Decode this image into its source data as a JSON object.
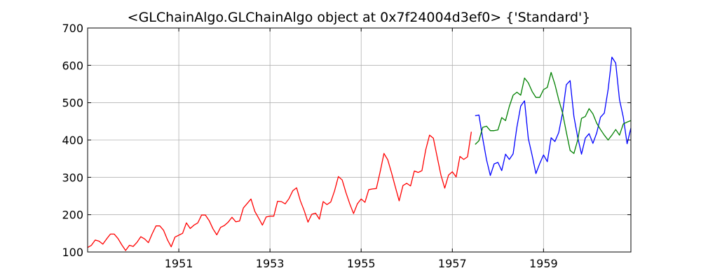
{
  "chart_data": {
    "type": "line",
    "title": "<GLChainAlgo.GLChainAlgo object at 0x7f24004d3ef0> {'Standard'}",
    "xlabel": "",
    "ylabel": "",
    "xlim": [
      "1949-01",
      "1960-12"
    ],
    "ylim": [
      100,
      700
    ],
    "grid": true,
    "x_ticks": [
      "1951",
      "1953",
      "1955",
      "1957",
      "1959"
    ],
    "y_ticks": [
      "100",
      "200",
      "300",
      "400",
      "500",
      "600",
      "700"
    ],
    "series": [
      {
        "color": "#ff0000",
        "x_start": "1949-01",
        "values": [
          112,
          118,
          132,
          129,
          121,
          135,
          148,
          148,
          136,
          119,
          104,
          118,
          115,
          126,
          141,
          135,
          125,
          149,
          170,
          170,
          158,
          133,
          114,
          140,
          145,
          150,
          178,
          163,
          172,
          178,
          199,
          199,
          184,
          162,
          146,
          166,
          171,
          180,
          193,
          181,
          183,
          218,
          230,
          242,
          209,
          191,
          172,
          194,
          196,
          196,
          236,
          235,
          229,
          243,
          264,
          272,
          237,
          211,
          180,
          201,
          204,
          188,
          235,
          227,
          234,
          264,
          302,
          293,
          259,
          229,
          203,
          229,
          242,
          233,
          267,
          269,
          270,
          315,
          364,
          347,
          312,
          274,
          237,
          278,
          284,
          277,
          317,
          313,
          318,
          374,
          413,
          405,
          355,
          306,
          271,
          306,
          315,
          301,
          356,
          348,
          355,
          422
        ]
      },
      {
        "color": "#0000ff",
        "x_start": "1957-07",
        "values": [
          465,
          467,
          404,
          347,
          305,
          336,
          340,
          318,
          362,
          348,
          363,
          435,
          491,
          505,
          404,
          359,
          310,
          337,
          360,
          342,
          406,
          396,
          420,
          472,
          548,
          559,
          463,
          407,
          362,
          405,
          417,
          391,
          419,
          461,
          472,
          535,
          622,
          606,
          508,
          461,
          390,
          432
        ]
      },
      {
        "color": "#008000",
        "x_start": "1957-07",
        "values": [
          388,
          398,
          434,
          437,
          425,
          425,
          427,
          460,
          452,
          490,
          520,
          528,
          520,
          566,
          553,
          530,
          514,
          514,
          535,
          541,
          581,
          549,
          508,
          473,
          421,
          372,
          364,
          400,
          458,
          463,
          484,
          470,
          445,
          428,
          413,
          400,
          413,
          428,
          413,
          443,
          448,
          452
        ]
      }
    ]
  }
}
